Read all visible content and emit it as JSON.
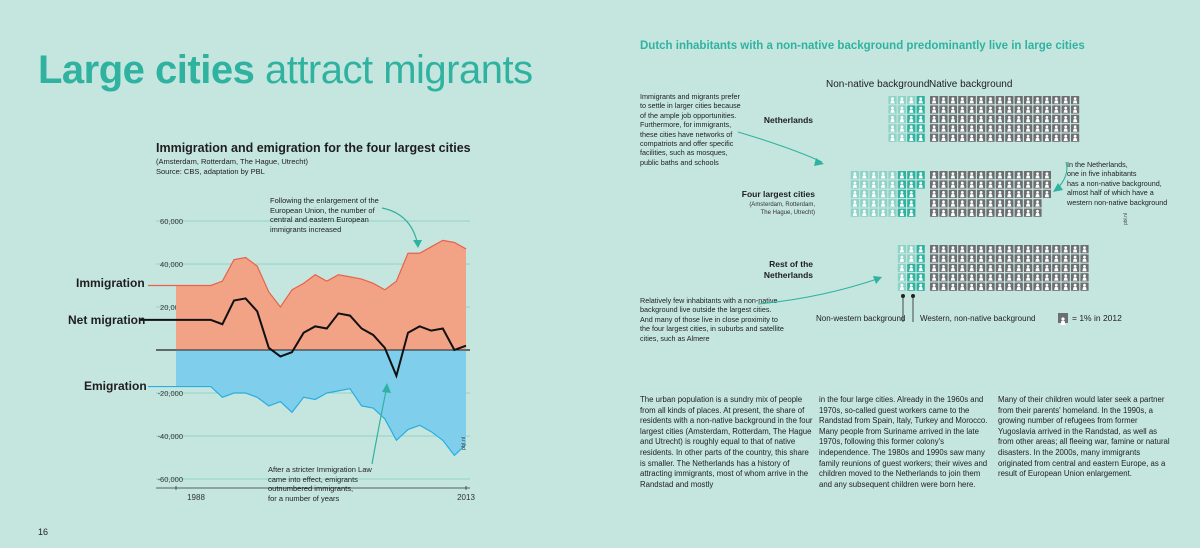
{
  "heading": {
    "bold": "Large cities",
    "light": "attract migrants"
  },
  "page_number": "16",
  "left_chart": {
    "title": "Immigration and emigration for the four largest cities",
    "subtitle": "(Amsterdam, Rotterdam, The Hague, Utrecht)",
    "source": "Source: CBS, adaptation by PBL",
    "label_immigration": "Immigration",
    "label_net": "Net migration",
    "label_emigration": "Emigration",
    "annotation_top": [
      "Following the enlargement of the",
      "European Union, the number of",
      "central and eastern European",
      "immigrants increased"
    ],
    "annotation_bottom": [
      "After a stricter Immigration Law",
      "came into effect, emigrants",
      "outnumbered immigrants,",
      "for a number of years"
    ],
    "credit": "pbl.nl",
    "colors": {
      "immigration": "#f3a385",
      "emigration": "#7fcfec",
      "immigration_line": "#e8624a",
      "emigration_line": "#29aee0",
      "net": "#111111"
    }
  },
  "chart_data": {
    "type": "area",
    "x": [
      1988,
      1989,
      1990,
      1991,
      1992,
      1993,
      1994,
      1995,
      1996,
      1997,
      1998,
      1999,
      2000,
      2001,
      2002,
      2003,
      2004,
      2005,
      2006,
      2007,
      2008,
      2009,
      2010,
      2011,
      2012,
      2013
    ],
    "x_tick_labels": [
      "1988",
      "2013"
    ],
    "y_tick_labels": [
      "60,000",
      "40,000",
      "20,000",
      "0",
      "-20,000",
      "-40,000",
      "-60,000"
    ],
    "ylim": [
      -60000,
      60000
    ],
    "series": [
      {
        "name": "Immigration",
        "values": [
          30000,
          30000,
          30000,
          30000,
          32000,
          42000,
          43000,
          39000,
          27000,
          20000,
          28000,
          31000,
          35000,
          32000,
          35000,
          34000,
          33000,
          31000,
          28000,
          32000,
          45000,
          45000,
          48000,
          51000,
          50000,
          47000
        ]
      },
      {
        "name": "Emigration",
        "values": [
          -17000,
          -17000,
          -17000,
          -17000,
          -22000,
          -20000,
          -20000,
          -22000,
          -26000,
          -24000,
          -29000,
          -22000,
          -23000,
          -20000,
          -19000,
          -18000,
          -26000,
          -27000,
          -32000,
          -42000,
          -37000,
          -35000,
          -38000,
          -42000,
          -49000,
          -44000
        ]
      },
      {
        "name": "Net migration",
        "values": [
          14000,
          14000,
          14000,
          14000,
          12000,
          23000,
          24000,
          18000,
          1000,
          -3000,
          -1000,
          8000,
          11000,
          10000,
          17000,
          16000,
          10000,
          7000,
          1000,
          -12000,
          8000,
          11000,
          9000,
          10000,
          0,
          2000
        ]
      }
    ]
  },
  "right": {
    "title": "Dutch inhabitants with a non-native background predominantly live in large cities",
    "header_non_native": "Non-native background",
    "header_native": "Native background",
    "row_netherlands": "Netherlands",
    "row_four_cities": "Four largest cities",
    "row_four_cities_sub": [
      "(Amsterdam, Rotterdam,",
      "The Hague, Utrecht)"
    ],
    "row_rest": [
      "Rest of the",
      "Netherlands"
    ],
    "annotation_left_top": [
      "Immigrants and migrants prefer",
      "to settle in larger cities because",
      "of the ample job opportunities.",
      "Furthermore, for immigrants,",
      "these cities have networks of",
      "compatriots and offer specific",
      "facilities, such as mosques,",
      "public baths and schools"
    ],
    "annotation_right": [
      "In the Netherlands,",
      "one in five inhabitants",
      "has a non-native background,",
      "almost half of which have a",
      "western non-native background"
    ],
    "annotation_left_bottom": [
      "Relatively few inhabitants with a non-native",
      "background live outside the largest cities.",
      "And many of those live in close proximity to",
      "the four largest cities, in suburbs and satellite",
      "cities, such as Almere"
    ],
    "label_non_western": "Non-western background",
    "label_western": "Western, non-native background",
    "legend": "= 1% in 2012",
    "credit": "pbl.nl",
    "colors": {
      "non_western": "#8ed3c7",
      "western": "#2fb3a0",
      "native": "#6d6e70"
    }
  },
  "pictogram_data": {
    "unit": "1% in 2012",
    "rows": [
      {
        "name": "Netherlands",
        "non_western": 11,
        "western": 9,
        "native": 80
      },
      {
        "name": "Four largest cities",
        "non_western": 25,
        "western": 12,
        "native": 63
      },
      {
        "name": "Rest of the Netherlands",
        "non_western": 7,
        "western": 8,
        "native": 85
      }
    ]
  },
  "body_text": [
    "The urban population is a sundry mix of people from all kinds of places. At present, the share of residents with a non-native background in the four largest cities (Amsterdam, Rotterdam, The Hague and Utrecht) is roughly equal to that of native residents. In other parts of the country, this share is smaller. The Netherlands has a history of attracting immigrants, most of whom arrive in the Randstad and mostly",
    "in the four large cities. Already in the 1960s and 1970s, so-called guest workers came to the Randstad from Spain, Italy, Turkey and Morocco. Many people from Suriname arrived in the late 1970s, following this former colony's independence. The 1980s and 1990s saw many family reunions of guest workers; their wives and children moved to the Netherlands to join them and any subsequent children were born here.",
    "Many of their children would later seek a partner from their parents' homeland. In the 1990s, a growing number of refugees from former Yugoslavia arrived in the Randstad, as well as from other areas; all fleeing war, famine or natural disasters. In the 2000s, many immigrants originated from central and eastern Europe, as a result of European Union enlargement."
  ]
}
